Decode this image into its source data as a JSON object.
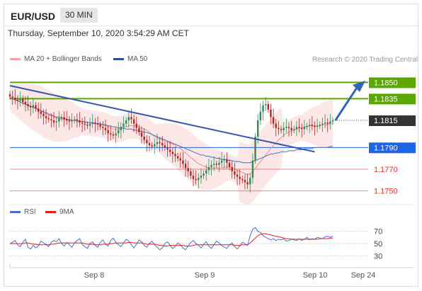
{
  "header": {
    "symbol": "EUR/USD",
    "timeframe": "30 MIN"
  },
  "datetime": "Thursday, September 10, 2020 3:54:29 AM CET",
  "legend": {
    "ma20_bb": "MA 20 + Bollinger Bands",
    "ma50": "MA 50",
    "credit": "Research © 2020 Trading Central",
    "ma20_color": "#f4a3a3",
    "ma50_color": "#2f4f8a"
  },
  "rsi_legend": {
    "rsi": "RSI",
    "ma9": "9MA",
    "rsi_color": "#4a6fcf",
    "ma9_color": "#e02020"
  },
  "colors": {
    "bull": "#2e8b57",
    "bear": "#b22222",
    "green_level": "#5aa700",
    "blue_level": "#1e64e6",
    "red_level": "#e03030",
    "trendline": "#3355aa",
    "bollinger": "#f9d4d4"
  },
  "chart_data": {
    "type": "candlestick",
    "ylim": [
      1.1738,
      1.1862
    ],
    "x_ticks": [
      "Sep 8",
      "Sep 9",
      "Sep 10",
      "Sep 24"
    ],
    "levels": [
      {
        "value": 1.185,
        "label": "1.1850",
        "style": "green-box"
      },
      {
        "value": 1.1835,
        "label": "1.1835",
        "style": "green-box"
      },
      {
        "value": 1.1815,
        "label": "1.1815",
        "style": "dark-box"
      },
      {
        "value": 1.179,
        "label": "1.1790",
        "style": "blue-box"
      },
      {
        "value": 1.177,
        "label": "1.1770",
        "style": "red-text"
      },
      {
        "value": 1.175,
        "label": "1.1750",
        "style": "red-text"
      }
    ],
    "close_series": [
      1.1837,
      1.1836,
      1.1834,
      1.1833,
      1.1835,
      1.1832,
      1.183,
      1.1828,
      1.1827,
      1.1829,
      1.1826,
      1.1823,
      1.1821,
      1.1819,
      1.1817,
      1.1816,
      1.1815,
      1.1813,
      1.1814,
      1.1817,
      1.1818,
      1.1816,
      1.1815,
      1.1814,
      1.1815,
      1.1816,
      1.1815,
      1.1813,
      1.1812,
      1.1811,
      1.181,
      1.1812,
      1.1813,
      1.1812,
      1.1811,
      1.1809,
      1.1808,
      1.1806,
      1.1803,
      1.1802,
      1.1801,
      1.1803,
      1.1806,
      1.1809,
      1.1812,
      1.1815,
      1.1818,
      1.1816,
      1.1812,
      1.1808,
      1.1804,
      1.18,
      1.1797,
      1.1794,
      1.1792,
      1.1791,
      1.1793,
      1.1795,
      1.1794,
      1.1792,
      1.179,
      1.1788,
      1.1786,
      1.1784,
      1.1782,
      1.178,
      1.1778,
      1.1775,
      1.1771,
      1.1768,
      1.1764,
      1.1761,
      1.176,
      1.1762,
      1.1764,
      1.1766,
      1.1769,
      1.1772,
      1.1774,
      1.1775,
      1.1774,
      1.1776,
      1.1778,
      1.1779,
      1.1776,
      1.1772,
      1.1768,
      1.1765,
      1.1763,
      1.1761,
      1.176,
      1.1758,
      1.1756,
      1.1762,
      1.1778,
      1.18,
      1.1815,
      1.1823,
      1.1829,
      1.183,
      1.1825,
      1.1818,
      1.1812,
      1.1808,
      1.1807,
      1.1806,
      1.1808,
      1.1809,
      1.1808,
      1.1806,
      1.1807,
      1.1809,
      1.1808,
      1.1807,
      1.1809,
      1.181,
      1.1811,
      1.181,
      1.1809,
      1.181,
      1.1811,
      1.1812,
      1.1813,
      1.1812,
      1.1814,
      1.1815
    ],
    "ma20": [
      1.1836,
      1.1835,
      1.1834,
      1.1833,
      1.1832,
      1.1831,
      1.183,
      1.1829,
      1.1828,
      1.1827,
      1.1826,
      1.1825,
      1.1824,
      1.1822,
      1.1821,
      1.182,
      1.1819,
      1.1818,
      1.1817,
      1.1817,
      1.1816,
      1.1816,
      1.1815,
      1.1815,
      1.1815,
      1.1815,
      1.1814,
      1.1814,
      1.1814,
      1.1813,
      1.1813,
      1.1813,
      1.1812,
      1.1812,
      1.1812,
      1.1811,
      1.1811,
      1.181,
      1.1809,
      1.1808,
      1.1807,
      1.1807,
      1.1807,
      1.1807,
      1.1808,
      1.1809,
      1.181,
      1.181,
      1.181,
      1.181,
      1.1809,
      1.1808,
      1.1807,
      1.1806,
      1.1804,
      1.1802,
      1.18,
      1.1799,
      1.1798,
      1.1797,
      1.1796,
      1.1795,
      1.1794,
      1.1793,
      1.1792,
      1.179,
      1.1789,
      1.1787,
      1.1785,
      1.1783,
      1.1781,
      1.1779,
      1.1777,
      1.1775,
      1.1774,
      1.1773,
      1.1772,
      1.1771,
      1.1771,
      1.1771,
      1.1771,
      1.1771,
      1.1771,
      1.1772,
      1.1772,
      1.1772,
      1.1771,
      1.177,
      1.1769,
      1.1768,
      1.1767,
      1.1766,
      1.1765,
      1.1766,
      1.1768,
      1.1771,
      1.1774,
      1.1777,
      1.178,
      1.1783,
      1.1786,
      1.1789,
      1.1792,
      1.1794,
      1.1797,
      1.1799,
      1.1801,
      1.1803,
      1.1804,
      1.1805,
      1.1806,
      1.1807,
      1.1808,
      1.1808,
      1.1809,
      1.1809,
      1.181,
      1.181,
      1.181,
      1.181,
      1.181,
      1.1811,
      1.1811,
      1.1811,
      1.1812,
      1.1812
    ],
    "ma50": [
      1.1836,
      1.1835,
      1.1834,
      1.1833,
      1.1832,
      1.1831,
      1.183,
      1.1829,
      1.1828,
      1.1827,
      1.1826,
      1.1825,
      1.1824,
      1.1823,
      1.1822,
      1.1821,
      1.182,
      1.1819,
      1.1818,
      1.1818,
      1.1817,
      1.1817,
      1.1816,
      1.1816,
      1.1815,
      1.1815,
      1.1815,
      1.1814,
      1.1814,
      1.1814,
      1.1813,
      1.1813,
      1.1813,
      1.1812,
      1.1812,
      1.1812,
      1.1811,
      1.1811,
      1.181,
      1.181,
      1.1809,
      1.1809,
      1.1808,
      1.1808,
      1.1808,
      1.1807,
      1.1807,
      1.1807,
      1.1806,
      1.1806,
      1.1805,
      1.1805,
      1.1804,
      1.1804,
      1.1803,
      1.1802,
      1.1801,
      1.18,
      1.1799,
      1.1798,
      1.1797,
      1.1796,
      1.1795,
      1.1794,
      1.1793,
      1.1792,
      1.1791,
      1.179,
      1.1789,
      1.1788,
      1.1787,
      1.1786,
      1.1785,
      1.1784,
      1.1783,
      1.1783,
      1.1782,
      1.1782,
      1.1781,
      1.1781,
      1.178,
      1.178,
      1.1779,
      1.1779,
      1.1779,
      1.1778,
      1.1778,
      1.1777,
      1.1777,
      1.1777,
      1.1776,
      1.1776,
      1.1776,
      1.1776,
      1.1777,
      1.1778,
      1.1779,
      1.178,
      1.1781,
      1.1782,
      1.1783,
      1.1784,
      1.1784,
      1.1785,
      1.1785,
      1.1786,
      1.1786,
      1.1786,
      1.1787,
      1.1787,
      1.1787,
      1.1788,
      1.1788,
      1.1788,
      1.1789,
      1.1789,
      1.1789,
      1.1789,
      1.179,
      1.179,
      1.179,
      1.179,
      1.179,
      1.179,
      1.1791,
      1.1791
    ],
    "trendline": [
      [
        1.1847,
        0
      ],
      [
        1.1786,
        118
      ]
    ],
    "forecast_arrow": [
      [
        1.1815,
        126
      ],
      [
        1.1849,
        137
      ]
    ],
    "rsi": {
      "ylim": [
        20,
        80
      ],
      "levels": [
        {
          "value": 70,
          "label": "70"
        },
        {
          "value": 50,
          "label": "50"
        },
        {
          "value": 30,
          "label": "30"
        }
      ],
      "rsi_values": [
        50,
        52,
        55,
        48,
        45,
        52,
        57,
        44,
        41,
        47,
        43,
        46,
        54,
        51,
        49,
        45,
        52,
        55,
        53,
        58,
        50,
        46,
        52,
        48,
        44,
        51,
        55,
        58,
        49,
        45,
        42,
        50,
        53,
        47,
        44,
        52,
        56,
        49,
        46,
        55,
        59,
        52,
        48,
        45,
        51,
        57,
        54,
        48,
        43,
        49,
        56,
        53,
        47,
        44,
        50,
        54,
        48,
        44,
        40,
        43,
        50,
        53,
        47,
        42,
        45,
        51,
        48,
        43,
        40,
        46,
        52,
        55,
        50,
        47,
        43,
        49,
        53,
        46,
        42,
        48,
        54,
        51,
        47,
        44,
        42,
        48,
        51,
        45,
        41,
        46,
        52,
        50,
        47,
        63,
        73,
        76,
        70,
        68,
        63,
        60,
        58,
        56,
        58,
        55,
        57,
        56,
        58,
        54,
        55,
        57,
        56,
        55,
        58,
        55,
        57,
        60,
        56,
        58,
        57,
        60,
        59,
        58,
        61,
        62,
        60,
        62
      ],
      "ma9_values": [
        50,
        50,
        50,
        50,
        50,
        50,
        51,
        51,
        50,
        49,
        49,
        48,
        48,
        48,
        48,
        48,
        49,
        49,
        50,
        51,
        51,
        51,
        51,
        51,
        51,
        51,
        51,
        51,
        51,
        50,
        49,
        49,
        49,
        48,
        48,
        48,
        49,
        49,
        49,
        50,
        50,
        51,
        51,
        51,
        51,
        51,
        52,
        52,
        51,
        51,
        51,
        51,
        50,
        49,
        49,
        49,
        49,
        48,
        47,
        47,
        46,
        46,
        47,
        47,
        47,
        47,
        47,
        47,
        46,
        46,
        46,
        47,
        48,
        48,
        48,
        48,
        48,
        48,
        48,
        48,
        48,
        48,
        48,
        48,
        48,
        48,
        48,
        47,
        47,
        47,
        48,
        48,
        48,
        51,
        55,
        59,
        63,
        65,
        66,
        66,
        65,
        64,
        63,
        62,
        61,
        60,
        59,
        58,
        58,
        57,
        57,
        57,
        57,
        57,
        57,
        57,
        57,
        57,
        57,
        57,
        58,
        58,
        58,
        58,
        59,
        59
      ]
    }
  }
}
